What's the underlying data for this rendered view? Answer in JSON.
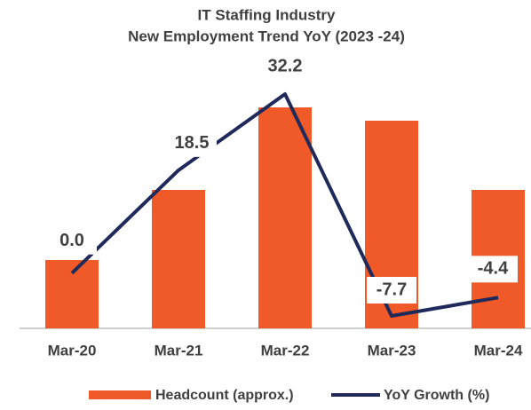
{
  "chart_data": {
    "type": "bar-line",
    "title": [
      "IT Staffing Industry",
      "New Employment Trend YoY (2023 -24)"
    ],
    "categories": [
      "Mar-20",
      "Mar-21",
      "Mar-22",
      "Mar-23",
      "Mar-24"
    ],
    "series": [
      {
        "name": "Headcount (approx.)",
        "type": "bar",
        "color": "#f05a28",
        "values": [
          77,
          156,
          249,
          234,
          156
        ]
      },
      {
        "name": "YoY Growth (%)",
        "type": "line",
        "axis": "y2",
        "color": "#1f2a5a",
        "values": [
          0.0,
          18.5,
          32.2,
          -7.7,
          -4.4
        ],
        "value_labels": [
          "0.0",
          "18.5",
          "32.2",
          "-7.7",
          "-4.4"
        ]
      }
    ],
    "legend": "bottom"
  }
}
